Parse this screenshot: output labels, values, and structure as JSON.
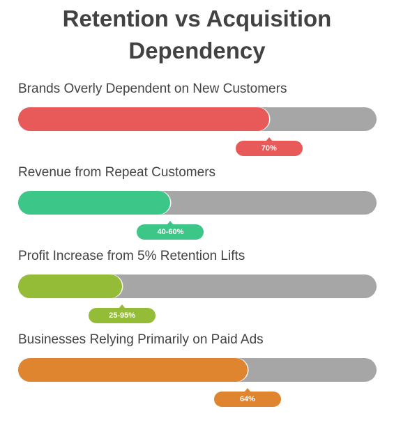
{
  "chart_data": {
    "type": "bar",
    "orientation": "horizontal",
    "title": "Retention vs Acquisition Dependency",
    "xlim": [
      0,
      100
    ],
    "grid": false,
    "legend": "none",
    "track_color": "#a6a6a6",
    "categories": [
      "Brands Overly Dependent on New Customers",
      "Revenue from Repeat Customers",
      "Profit Increase from 5% Retention Lifts",
      "Businesses Relying Primarily on Paid Ads"
    ],
    "values": [
      70,
      42.5,
      29,
      64
    ],
    "data_labels": [
      "70%",
      "40-60%",
      "25-95%",
      "64%"
    ],
    "colors": [
      "#e85a5a",
      "#3cc687",
      "#95bc37",
      "#e0852f"
    ]
  }
}
